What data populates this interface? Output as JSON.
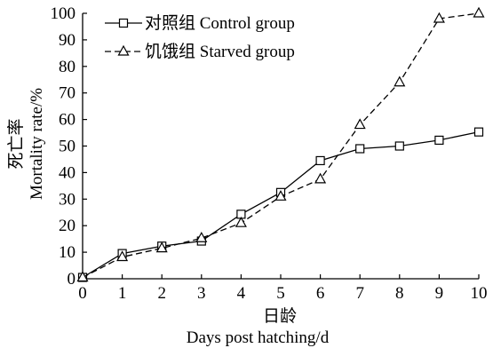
{
  "chart_data": {
    "type": "line",
    "xlabel_cn": "日龄",
    "xlabel_en": "Days post hatching/d",
    "ylabel_cn": "死亡率",
    "ylabel_en": "Mortality rate/%",
    "x": [
      0,
      1,
      2,
      3,
      4,
      5,
      6,
      7,
      8,
      9,
      10
    ],
    "xlim": [
      0,
      10
    ],
    "ylim": [
      0,
      100
    ],
    "x_ticks": [
      0,
      1,
      2,
      3,
      4,
      5,
      6,
      7,
      8,
      9,
      10
    ],
    "y_ticks": [
      0,
      10,
      20,
      30,
      40,
      50,
      60,
      70,
      80,
      90,
      100
    ],
    "grid": false,
    "legend_position": "top-left",
    "series": [
      {
        "name": "对照组 Control group",
        "line_style": "solid",
        "marker": "square",
        "values": [
          0.5,
          9.5,
          12.3,
          14.2,
          24.3,
          32.5,
          44.5,
          49,
          50,
          52.2,
          55.3
        ]
      },
      {
        "name": "饥饿组 Starved group",
        "line_style": "dashed",
        "marker": "triangle",
        "values": [
          0.5,
          8.2,
          11.5,
          15.3,
          21,
          31,
          37.5,
          58,
          74,
          98,
          100
        ]
      }
    ]
  }
}
